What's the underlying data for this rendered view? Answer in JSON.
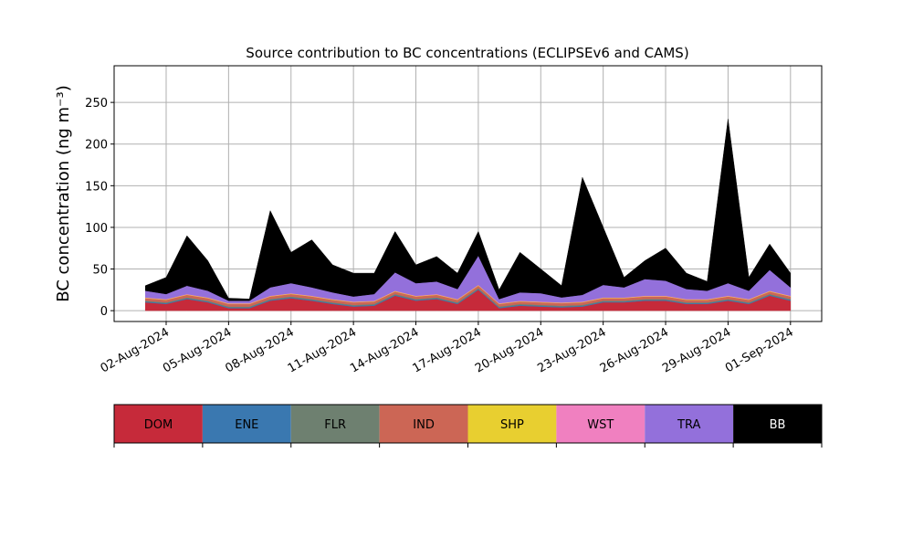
{
  "chart_data": {
    "type": "stacked_area",
    "title": "Source contribution to BC concentrations (ECLIPSEv6 and CAMS)",
    "y_label": "BC concentration (ng m⁻³)",
    "x": [
      "2024-08-01",
      "2024-08-02",
      "2024-08-03",
      "2024-08-04",
      "2024-08-05",
      "2024-08-06",
      "2024-08-07",
      "2024-08-08",
      "2024-08-09",
      "2024-08-10",
      "2024-08-11",
      "2024-08-12",
      "2024-08-13",
      "2024-08-14",
      "2024-08-15",
      "2024-08-16",
      "2024-08-17",
      "2024-08-18",
      "2024-08-19",
      "2024-08-20",
      "2024-08-21",
      "2024-08-22",
      "2024-08-23",
      "2024-08-24",
      "2024-08-25",
      "2024-08-26",
      "2024-08-27",
      "2024-08-28",
      "2024-08-29",
      "2024-08-30",
      "2024-08-31",
      "2024-09-01"
    ],
    "series": [
      {
        "name": "DOM",
        "color": "#c62a3a",
        "values": [
          10,
          8,
          14,
          10,
          3,
          3,
          12,
          15,
          12,
          8,
          5,
          6,
          18,
          12,
          14,
          8,
          25,
          3,
          6,
          5,
          4,
          5,
          10,
          10,
          12,
          12,
          8,
          8,
          12,
          8,
          18,
          12
        ]
      },
      {
        "name": "ENE",
        "color": "#3a78b0",
        "values": [
          1,
          1,
          1,
          1,
          1,
          1,
          1,
          1,
          1,
          1,
          1,
          1,
          1,
          1,
          1,
          1,
          1,
          1,
          1,
          1,
          1,
          1,
          1,
          1,
          1,
          1,
          1,
          1,
          1,
          1,
          1,
          1
        ]
      },
      {
        "name": "FLR",
        "color": "#6e8070",
        "values": [
          1,
          1,
          1,
          1,
          1,
          1,
          1,
          1,
          1,
          1,
          1,
          1,
          1,
          1,
          1,
          1,
          1,
          1,
          1,
          1,
          1,
          1,
          1,
          1,
          1,
          1,
          1,
          1,
          1,
          1,
          1,
          1
        ]
      },
      {
        "name": "IND",
        "color": "#cc6655",
        "values": [
          3,
          3,
          3,
          3,
          3,
          3,
          3,
          3,
          3,
          3,
          3,
          3,
          3,
          3,
          3,
          3,
          3,
          3,
          3,
          3,
          3,
          3,
          3,
          3,
          3,
          3,
          3,
          3,
          3,
          3,
          3,
          3
        ]
      },
      {
        "name": "SHP",
        "color": "#e8cf30",
        "values": [
          0.5,
          0.5,
          0.5,
          0.5,
          0.5,
          0.5,
          0.5,
          0.5,
          0.5,
          0.5,
          0.5,
          0.5,
          0.5,
          0.5,
          0.5,
          0.5,
          0.5,
          0.5,
          0.5,
          0.5,
          0.5,
          0.5,
          0.5,
          0.5,
          0.5,
          0.5,
          0.5,
          0.5,
          0.5,
          0.5,
          0.5,
          0.5
        ]
      },
      {
        "name": "WST",
        "color": "#f080c0",
        "values": [
          0.5,
          0.5,
          0.5,
          0.5,
          0.5,
          0.5,
          0.5,
          0.5,
          0.5,
          0.5,
          0.5,
          0.5,
          0.5,
          0.5,
          0.5,
          0.5,
          0.5,
          0.5,
          0.5,
          0.5,
          0.5,
          0.5,
          0.5,
          0.5,
          0.5,
          0.5,
          0.5,
          0.5,
          0.5,
          0.5,
          0.5,
          0.5
        ]
      },
      {
        "name": "TRA",
        "color": "#9370db",
        "values": [
          8,
          6,
          10,
          8,
          3,
          3,
          10,
          12,
          10,
          8,
          6,
          8,
          22,
          15,
          15,
          12,
          35,
          5,
          10,
          10,
          6,
          8,
          15,
          12,
          20,
          18,
          12,
          10,
          15,
          10,
          25,
          10
        ]
      },
      {
        "name": "BB",
        "color": "#000000",
        "values": [
          6,
          20,
          60,
          36,
          3,
          2,
          92,
          37,
          57,
          33,
          28,
          25,
          49,
          22,
          30,
          19,
          29,
          11,
          48,
          29,
          14,
          141,
          69,
          12,
          22,
          39,
          19,
          11,
          197,
          16,
          31,
          17
        ]
      }
    ],
    "xlim": [
      "2024-07-30 12:00",
      "2024-09-02 12:00"
    ],
    "xticks": [
      {
        "value": "2024-08-02",
        "label": "02-Aug-2024"
      },
      {
        "value": "2024-08-05",
        "label": "05-Aug-2024"
      },
      {
        "value": "2024-08-08",
        "label": "08-Aug-2024"
      },
      {
        "value": "2024-08-11",
        "label": "11-Aug-2024"
      },
      {
        "value": "2024-08-14",
        "label": "14-Aug-2024"
      },
      {
        "value": "2024-08-17",
        "label": "17-Aug-2024"
      },
      {
        "value": "2024-08-20",
        "label": "20-Aug-2024"
      },
      {
        "value": "2024-08-23",
        "label": "23-Aug-2024"
      },
      {
        "value": "2024-08-26",
        "label": "26-Aug-2024"
      },
      {
        "value": "2024-08-29",
        "label": "29-Aug-2024"
      },
      {
        "value": "2024-09-01",
        "label": "01-Sep-2024"
      }
    ],
    "ylim": [
      -13,
      294
    ],
    "yticks": [
      0,
      50,
      100,
      150,
      200,
      250
    ],
    "grid": true,
    "legend": "bottom"
  }
}
